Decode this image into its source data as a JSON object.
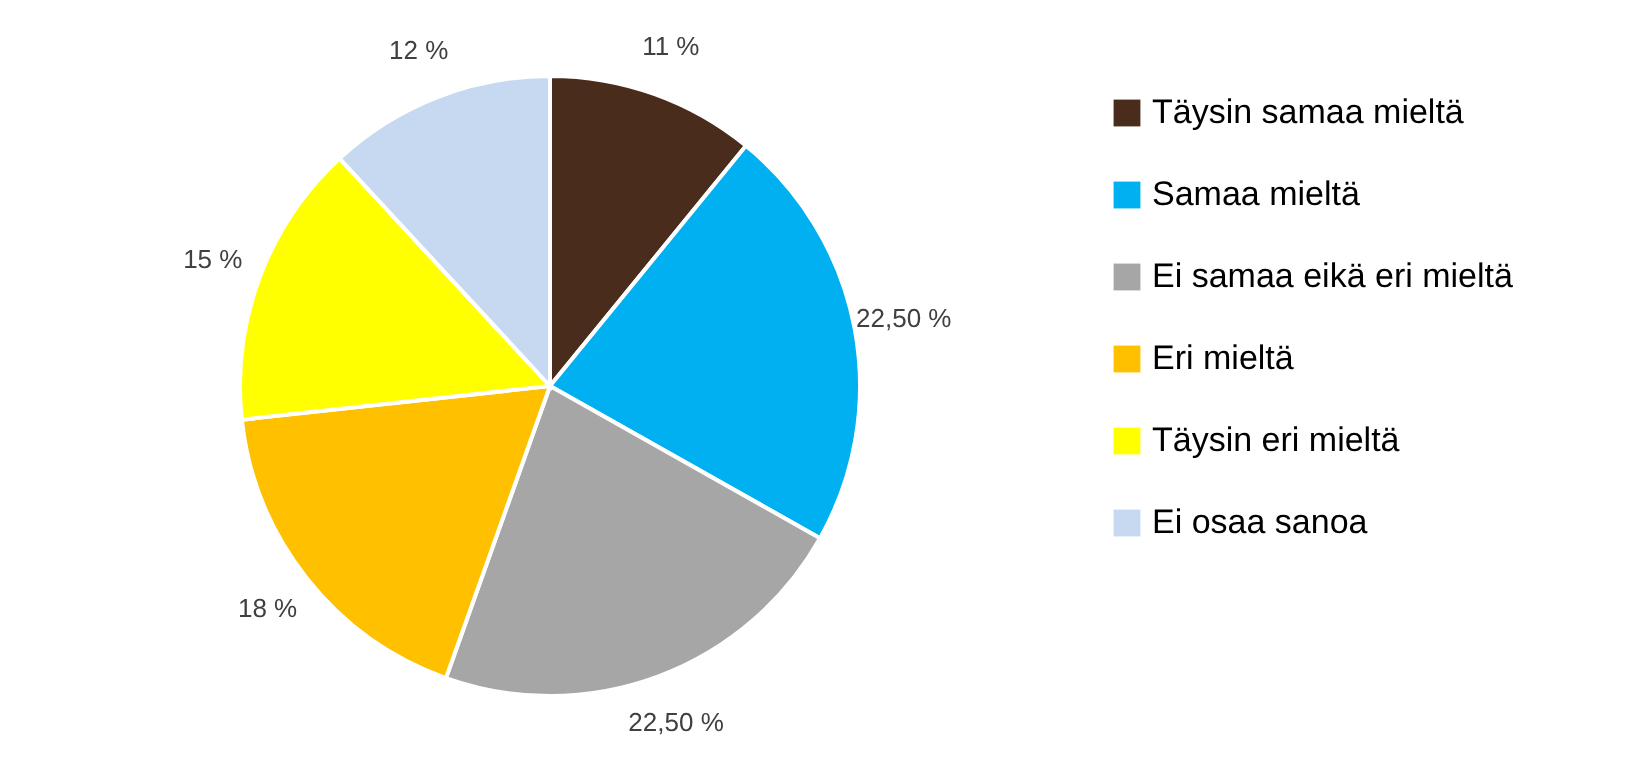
{
  "chart_data": {
    "type": "pie",
    "categories": [
      "Täysin samaa mieltä",
      "Samaa mieltä",
      "Ei samaa eikä eri mieltä",
      "Eri mieltä",
      "Täysin eri mieltä",
      "Ei osaa sanoa"
    ],
    "values": [
      11,
      22.5,
      22.5,
      18,
      15,
      12
    ],
    "value_labels": [
      "11 %",
      "22,50 %",
      "22,50 %",
      "18 %",
      "15 %",
      "12 %"
    ],
    "colors": [
      "#4a2c1d",
      "#00b0f0",
      "#a6a6a6",
      "#ffc000",
      "#ffff00",
      "#c6d9f1"
    ],
    "legend": "right"
  }
}
